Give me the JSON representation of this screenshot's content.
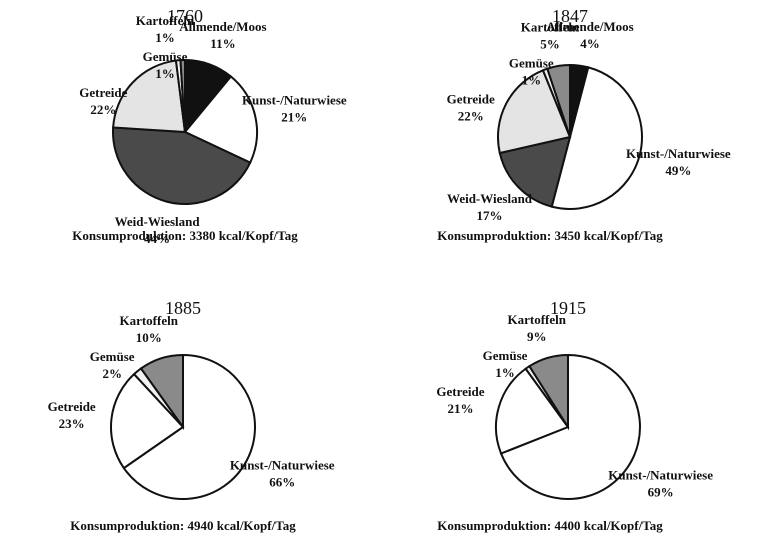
{
  "chart_data": [
    {
      "type": "pie",
      "title": "1760",
      "categories": [
        "Allmende/Moos",
        "Kunst-/Naturwiese",
        "Weid-Wiesland",
        "Getreide",
        "Gemüse",
        "Kartoffeln"
      ],
      "values": [
        11,
        21,
        44,
        22,
        1,
        1
      ],
      "value_labels": [
        "11%",
        "21%",
        "44%",
        "22%",
        "1%",
        "1%"
      ],
      "colors": [
        "#111111",
        "#ffffff",
        "#4a4a4a",
        "#e4e4e4",
        "#f2f2f2",
        "#8a8a8a"
      ],
      "footnote": "Konsumproduktion: 3380 kcal/Kopf/Tag"
    },
    {
      "type": "pie",
      "title": "1847",
      "categories": [
        "Allmende/Moos",
        "Kunst-/Naturwiese",
        "Weid-Wiesland",
        "Getreide",
        "Gemüse",
        "Kartoffeln"
      ],
      "values": [
        4,
        49,
        17,
        22,
        1,
        5
      ],
      "value_labels": [
        "4%",
        "49%",
        "17%",
        "22%",
        "1%",
        "5%"
      ],
      "colors": [
        "#111111",
        "#ffffff",
        "#4a4a4a",
        "#e4e4e4",
        "#f2f2f2",
        "#8a8a8a"
      ],
      "footnote": "Konsumproduktion: 3450 kcal/Kopf/Tag"
    },
    {
      "type": "pie",
      "title": "1885",
      "categories": [
        "Kunst-/Naturwiese",
        "Getreide",
        "Gemüse",
        "Kartoffeln"
      ],
      "values": [
        66,
        23,
        2,
        10
      ],
      "value_labels": [
        "66%",
        "23%",
        "2%",
        "10%"
      ],
      "colors": [
        "#ffffff",
        "#ffffff",
        "#f2f2f2",
        "#8a8a8a"
      ],
      "footnote": "Konsumproduktion: 4940 kcal/Kopf/Tag"
    },
    {
      "type": "pie",
      "title": "1915",
      "categories": [
        "Kunst-/Naturwiese",
        "Getreide",
        "Gemüse",
        "Kartoffeln"
      ],
      "values": [
        69,
        21,
        1,
        9
      ],
      "value_labels": [
        "69%",
        "21%",
        "1%",
        "9%"
      ],
      "colors": [
        "#ffffff",
        "#ffffff",
        "#f2f2f2",
        "#8a8a8a"
      ],
      "footnote": "Konsumproduktion: 4400 kcal/Kopf/Tag"
    }
  ]
}
